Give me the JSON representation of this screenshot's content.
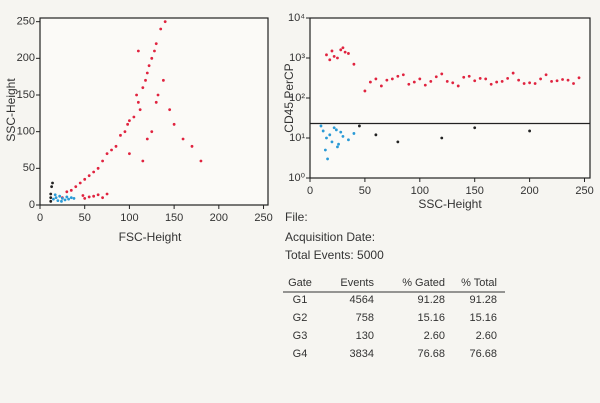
{
  "chart_data": [
    {
      "type": "scatter",
      "x_label": "FSC-Height",
      "y_label": "SSC-Height",
      "xlim": [
        0,
        255
      ],
      "ylim": [
        0,
        255
      ],
      "xticks": [
        0,
        50,
        100,
        150,
        200,
        250
      ],
      "yticks": [
        0,
        50,
        100,
        150,
        200,
        250
      ],
      "series": [
        {
          "color": "#e0233f",
          "x": [
            105,
            110,
            115,
            120,
            98,
            125,
            130,
            112,
            118,
            108,
            95,
            100,
            122,
            128,
            135,
            140,
            90,
            85,
            80,
            75,
            70,
            65,
            60,
            55,
            50,
            45,
            40,
            120,
            132,
            138,
            125,
            115,
            145,
            150,
            160,
            170,
            180,
            110,
            100,
            130,
            60,
            65,
            70,
            75,
            55,
            50,
            48,
            35,
            30,
            25
          ],
          "y": [
            120,
            140,
            160,
            180,
            110,
            200,
            220,
            130,
            170,
            150,
            100,
            115,
            190,
            210,
            240,
            250,
            95,
            80,
            75,
            70,
            60,
            50,
            45,
            40,
            35,
            30,
            25,
            90,
            150,
            170,
            100,
            60,
            130,
            110,
            90,
            80,
            60,
            210,
            70,
            140,
            12,
            14,
            10,
            15,
            11,
            9,
            13,
            20,
            18,
            10
          ]
        },
        {
          "color": "#2a9ad6",
          "x": [
            15,
            18,
            20,
            22,
            25,
            28,
            30,
            32,
            35,
            38,
            17,
            24
          ],
          "y": [
            8,
            10,
            6,
            12,
            9,
            7,
            11,
            8,
            10,
            9,
            14,
            5
          ]
        },
        {
          "color": "#222222",
          "x": [
            12,
            12,
            13,
            12,
            14
          ],
          "y": [
            5,
            15,
            25,
            10,
            30
          ]
        }
      ]
    },
    {
      "type": "scatter",
      "x_label": "SSC-Height",
      "y_label": "CD45 PerCP",
      "log": true,
      "xlim": [
        0,
        255
      ],
      "ylim": [
        1,
        10000
      ],
      "xticks": [
        0,
        50,
        100,
        150,
        200,
        250
      ],
      "yticks": [
        {
          "value": 1,
          "label": "10⁰"
        },
        {
          "value": 10,
          "label": "10¹"
        },
        {
          "value": 100,
          "label": "10²"
        },
        {
          "value": 1000,
          "label": "10³"
        },
        {
          "value": 10000,
          "label": "10⁴"
        }
      ],
      "gate": 23,
      "series": [
        {
          "color": "#e0233f",
          "x": [
            15,
            20,
            25,
            30,
            35,
            18,
            28,
            22,
            32,
            40,
            55,
            60,
            70,
            80,
            90,
            100,
            110,
            120,
            130,
            140,
            150,
            160,
            170,
            180,
            190,
            200,
            210,
            220,
            230,
            240,
            65,
            85,
            105,
            125,
            145,
            165,
            185,
            205,
            225,
            245,
            75,
            95,
            115,
            135,
            155,
            175,
            195,
            215,
            235,
            50
          ],
          "y": [
            1200,
            1500,
            1000,
            1800,
            1300,
            900,
            1600,
            1100,
            1400,
            700,
            250,
            300,
            280,
            350,
            220,
            300,
            260,
            400,
            240,
            330,
            270,
            300,
            250,
            310,
            280,
            240,
            300,
            260,
            290,
            230,
            200,
            380,
            210,
            260,
            350,
            220,
            420,
            230,
            270,
            320,
            300,
            250,
            340,
            200,
            310,
            260,
            230,
            380,
            280,
            150
          ]
        },
        {
          "color": "#2a9ad6",
          "x": [
            10,
            12,
            15,
            18,
            20,
            22,
            25,
            28,
            30,
            35,
            14,
            16,
            24,
            26,
            40
          ],
          "y": [
            20,
            15,
            10,
            12,
            8,
            18,
            6,
            14,
            11,
            9,
            5,
            3,
            16,
            7,
            13
          ]
        },
        {
          "color": "#222222",
          "x": [
            60,
            120,
            150,
            200,
            80,
            45
          ],
          "y": [
            12,
            10,
            18,
            15,
            8,
            20
          ]
        }
      ]
    }
  ],
  "info": {
    "file": "File:",
    "acquisition_date": "Acquisition Date:",
    "total_events_label": "Total Events:",
    "total_events": 5000
  },
  "table": {
    "header": [
      "Gate",
      "Events",
      "% Gated",
      "% Total"
    ],
    "rows": [
      [
        "G1",
        "4564",
        "91.28",
        "91.28"
      ],
      [
        "G2",
        "758",
        "15.16",
        "15.16"
      ],
      [
        "G3",
        "130",
        "2.60",
        "2.60"
      ],
      [
        "G4",
        "3834",
        "76.68",
        "76.68"
      ]
    ]
  }
}
